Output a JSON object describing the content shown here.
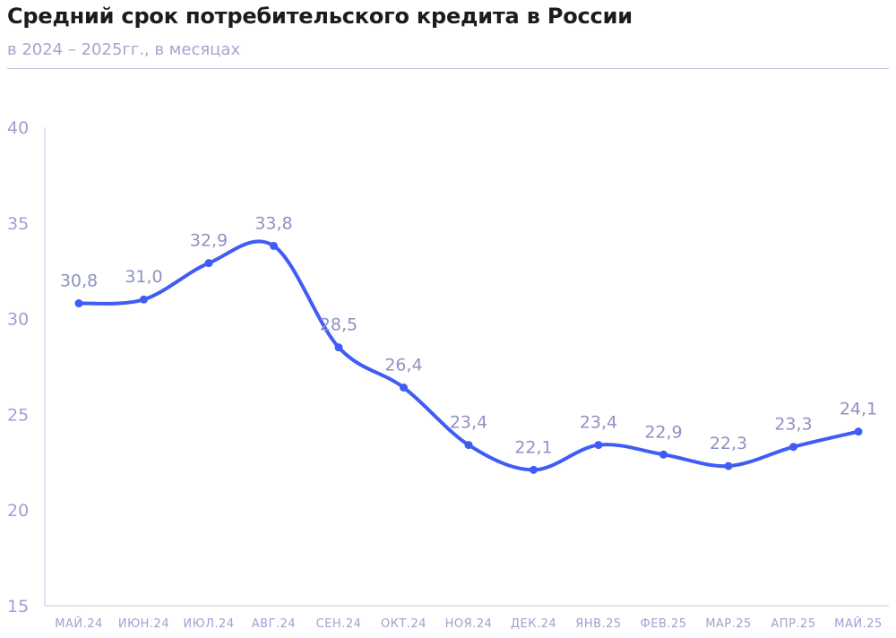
{
  "header": {
    "title": "Средний срок потребительского кредита в России",
    "subtitle": "в 2024 – 2025гг., в месяцах"
  },
  "colors": {
    "line": "#3f5cf5",
    "axis_text": "#9ea1d2",
    "label_text": "#8f92c2",
    "axis_line": "#c4c6e4",
    "title_text": "#1c1c1c"
  },
  "chart_data": {
    "type": "line",
    "title": "Средний срок потребительского кредита в России",
    "subtitle": "в 2024 – 2025гг., в месяцах",
    "xlabel": "",
    "ylabel": "",
    "categories": [
      "МАЙ.24",
      "ИЮН.24",
      "ИЮЛ.24",
      "АВГ.24",
      "СЕН.24",
      "ОКТ.24",
      "НОЯ.24",
      "ДЕК.24",
      "ЯНВ.25",
      "ФЕВ.25",
      "МАР.25",
      "АПР.25",
      "МАЙ.25"
    ],
    "series": [
      {
        "values": [
          30.8,
          31.0,
          32.9,
          33.8,
          28.5,
          26.4,
          23.4,
          22.1,
          23.4,
          22.9,
          22.3,
          23.3,
          24.1
        ],
        "labels": [
          "30,8",
          "31,0",
          "32,9",
          "33,8",
          "28,5",
          "26,4",
          "23,4",
          "22,1",
          "23,4",
          "22,9",
          "22,3",
          "23,3",
          "24,1"
        ]
      }
    ],
    "ylim": [
      15,
      40
    ],
    "yticks": [
      15,
      20,
      25,
      30,
      35,
      40
    ],
    "grid": false,
    "legend": "none",
    "smooth": true
  }
}
